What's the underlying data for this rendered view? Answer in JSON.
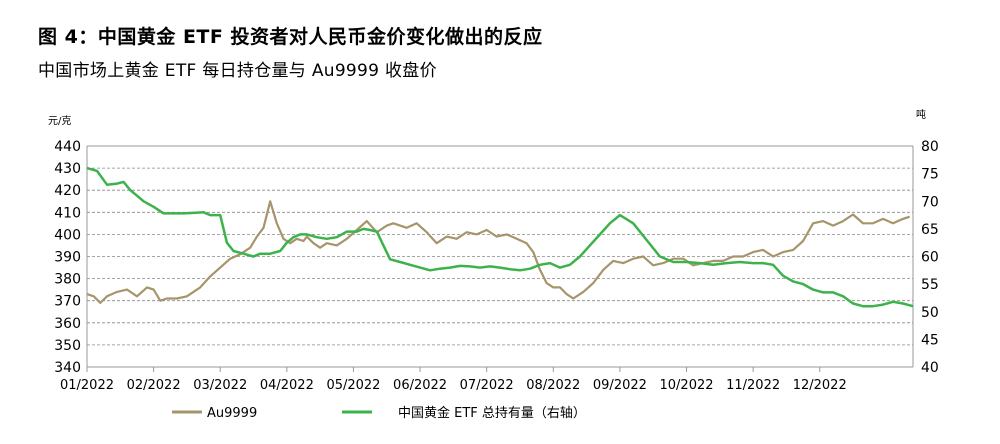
{
  "chart_data": {
    "type": "line",
    "title": "图 4：中国黄金 ETF 投资者对人民币金价变化做出的反应",
    "subtitle": "中国市场上黄金 ETF 每日持仓量与 Au9999 收盘价",
    "y_left_unit": "元/克",
    "y_right_unit": "吨",
    "y_left_lim": [
      340,
      440
    ],
    "y_right_lim": [
      40,
      80
    ],
    "y_left_ticks": [
      "440",
      "430",
      "420",
      "410",
      "400",
      "390",
      "380",
      "370",
      "360",
      "350",
      "340"
    ],
    "y_right_ticks": [
      "80",
      "75",
      "70",
      "65",
      "60",
      "55",
      "50",
      "45",
      "40"
    ],
    "x_lim": [
      0,
      12
    ],
    "x_ticks": [
      "01/2022",
      "02/2022",
      "03/2022",
      "04/2022",
      "05/2022",
      "06/2022",
      "07/2022",
      "08/2022",
      "09/2022",
      "10/2022",
      "11/2022",
      "12/2022"
    ],
    "grid": "horizontal dashed",
    "legend_position": "bottom",
    "series": [
      {
        "name": "Au9999",
        "axis": "left",
        "color": "#a6956b",
        "x": [
          0,
          0.1,
          0.2,
          0.3,
          0.45,
          0.6,
          0.75,
          0.9,
          1.0,
          1.1,
          1.2,
          1.35,
          1.5,
          1.7,
          1.85,
          2.0,
          2.15,
          2.3,
          2.45,
          2.55,
          2.65,
          2.75,
          2.85,
          2.95,
          3.05,
          3.15,
          3.25,
          3.3,
          3.4,
          3.5,
          3.6,
          3.75,
          3.9,
          4.05,
          4.2,
          4.35,
          4.5,
          4.6,
          4.7,
          4.8,
          4.95,
          5.1,
          5.25,
          5.4,
          5.55,
          5.7,
          5.85,
          6.0,
          6.15,
          6.3,
          6.45,
          6.6,
          6.7,
          6.8,
          6.9,
          7.0,
          7.1,
          7.2,
          7.3,
          7.45,
          7.6,
          7.75,
          7.9,
          8.05,
          8.2,
          8.35,
          8.5,
          8.65,
          8.8,
          8.95,
          9.1,
          9.25,
          9.4,
          9.55,
          9.7,
          9.85,
          10.0,
          10.15,
          10.3,
          10.45,
          10.6,
          10.75,
          10.9,
          11.05,
          11.2,
          11.35,
          11.5,
          11.65,
          11.8,
          11.95,
          12.1,
          12.25,
          12.35
        ],
        "values": [
          373,
          372,
          369,
          372,
          374,
          375,
          372,
          376,
          375,
          370,
          371,
          371,
          372,
          376,
          381,
          385,
          389,
          391,
          394,
          399,
          403,
          415,
          405,
          398,
          396,
          398,
          397,
          399,
          396,
          394,
          396,
          395,
          398,
          402,
          406,
          401,
          404,
          405,
          404,
          403,
          405,
          401,
          396,
          399,
          398,
          401,
          400,
          402,
          399,
          400,
          398,
          396,
          392,
          384,
          378,
          376,
          376,
          373,
          371,
          374,
          378,
          384,
          388,
          387,
          389,
          390,
          386,
          387,
          389,
          389,
          386,
          387,
          388,
          388,
          390,
          390,
          392,
          393,
          390,
          392,
          393,
          397,
          405,
          406,
          404,
          406,
          409,
          405,
          405,
          407,
          405,
          407,
          408
        ]
      },
      {
        "name": "中国黄金 ETF 总持有量（右轴）",
        "axis": "right",
        "color": "#3cb34a",
        "x": [
          0,
          0.15,
          0.3,
          0.45,
          0.55,
          0.65,
          0.75,
          0.85,
          1.0,
          1.15,
          1.3,
          1.45,
          1.6,
          1.75,
          1.85,
          2.0,
          2.1,
          2.2,
          2.35,
          2.5,
          2.6,
          2.75,
          2.9,
          3.0,
          3.1,
          3.2,
          3.3,
          3.45,
          3.6,
          3.75,
          3.9,
          4.05,
          4.15,
          4.25,
          4.35,
          4.45,
          4.55,
          4.7,
          4.85,
          5.0,
          5.15,
          5.3,
          5.45,
          5.6,
          5.75,
          5.9,
          6.05,
          6.2,
          6.35,
          6.5,
          6.65,
          6.8,
          6.95,
          7.1,
          7.25,
          7.4,
          7.55,
          7.7,
          7.85,
          8.0,
          8.2,
          8.4,
          8.6,
          8.8,
          9.0,
          9.2,
          9.4,
          9.6,
          9.8,
          10.0,
          10.15,
          10.3,
          10.45,
          10.6,
          10.75,
          10.9,
          11.05,
          11.2,
          11.35,
          11.5,
          11.65,
          11.8,
          11.95,
          12.1,
          12.25,
          12.4
        ],
        "values": [
          76,
          75.5,
          73,
          73.2,
          73.5,
          72,
          71,
          70,
          69,
          67.8,
          67.8,
          67.8,
          67.9,
          68,
          67.5,
          67.5,
          62.5,
          61,
          60.5,
          60,
          60.5,
          60.5,
          61,
          62.5,
          63.5,
          64,
          64,
          63.5,
          63.2,
          63.5,
          64.5,
          64.5,
          65,
          64.8,
          64.5,
          62,
          59.5,
          59,
          58.5,
          58,
          57.5,
          57.8,
          58,
          58.3,
          58.2,
          58,
          58.2,
          58,
          57.7,
          57.5,
          57.8,
          58.5,
          58.8,
          58,
          58.5,
          60,
          62,
          64,
          66,
          67.5,
          66,
          63,
          60,
          59,
          59,
          58.8,
          58.5,
          58.8,
          59,
          58.8,
          58.8,
          58.5,
          56.5,
          55.5,
          55,
          54,
          53.5,
          53.5,
          52.8,
          51.5,
          51,
          51,
          51.3,
          51.8,
          51.5,
          51
        ]
      }
    ]
  }
}
